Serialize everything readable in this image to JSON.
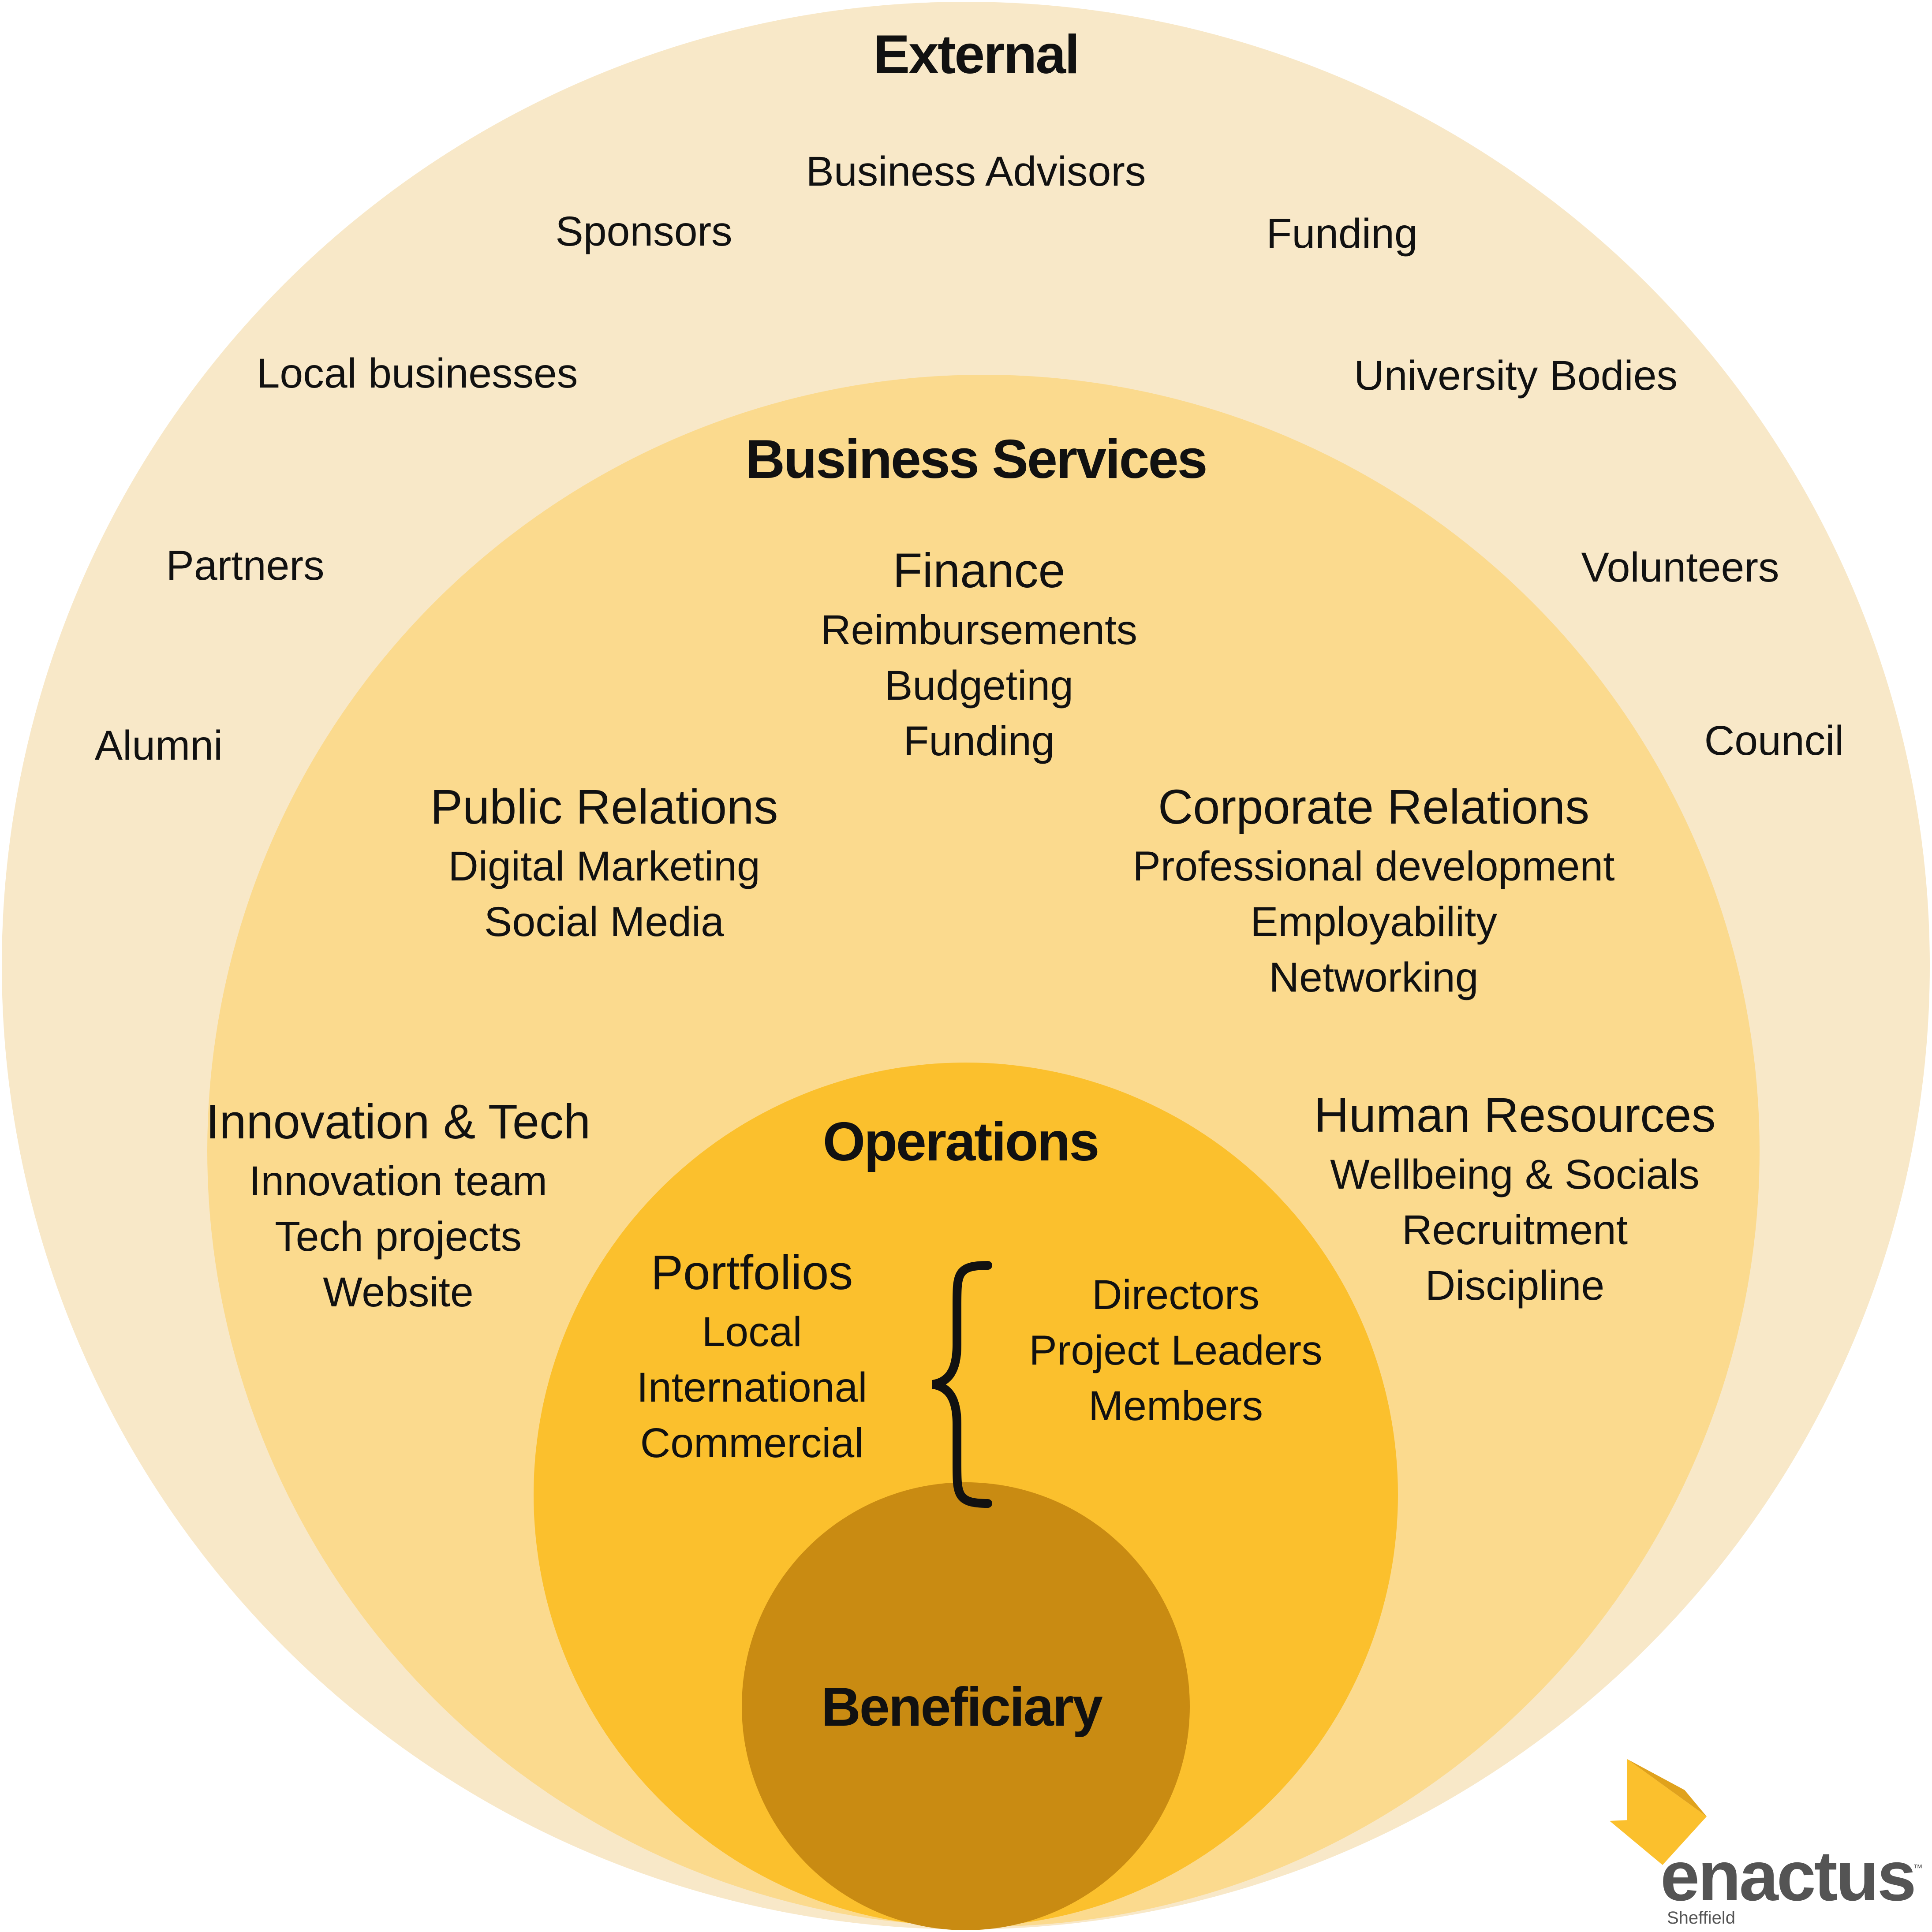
{
  "rings": {
    "external": {
      "title": "External",
      "items": [
        "Business Advisors",
        "Sponsors",
        "Funding",
        "Local businesses",
        "University Bodies",
        "Partners",
        "Volunteers",
        "Alumni",
        "Council"
      ],
      "color": "#F8E8C8"
    },
    "business_services": {
      "title": "Business Services",
      "color": "#FBDA8E",
      "groups": [
        {
          "heading": "Finance",
          "items": [
            "Reimbursements",
            "Budgeting",
            "Funding"
          ]
        },
        {
          "heading": "Public Relations",
          "items": [
            "Digital Marketing",
            "Social Media"
          ]
        },
        {
          "heading": "Corporate Relations",
          "items": [
            "Professional development",
            "Employability",
            "Networking"
          ]
        },
        {
          "heading": "Innovation & Tech",
          "items": [
            "Innovation team",
            "Tech projects",
            "Website"
          ]
        },
        {
          "heading": "Human Resources",
          "items": [
            "Wellbeing & Socials",
            "Recruitment",
            "Discipline"
          ]
        }
      ]
    },
    "operations": {
      "title": "Operations",
      "color": "#FBC02D",
      "portfolios": {
        "heading": "Portfolios",
        "items": [
          "Local",
          "International",
          "Commercial"
        ]
      },
      "roles": [
        "Directors",
        "Project Leaders",
        "Members"
      ]
    },
    "beneficiary": {
      "title": "Beneficiary",
      "color": "#C98B12"
    }
  },
  "logo": {
    "text": "enactus",
    "subtext": "Sheffield",
    "trademark": "™",
    "text_color": "#545454",
    "mark_colors": [
      "#FBC02D",
      "#E0A21C",
      "#C98B12"
    ]
  }
}
